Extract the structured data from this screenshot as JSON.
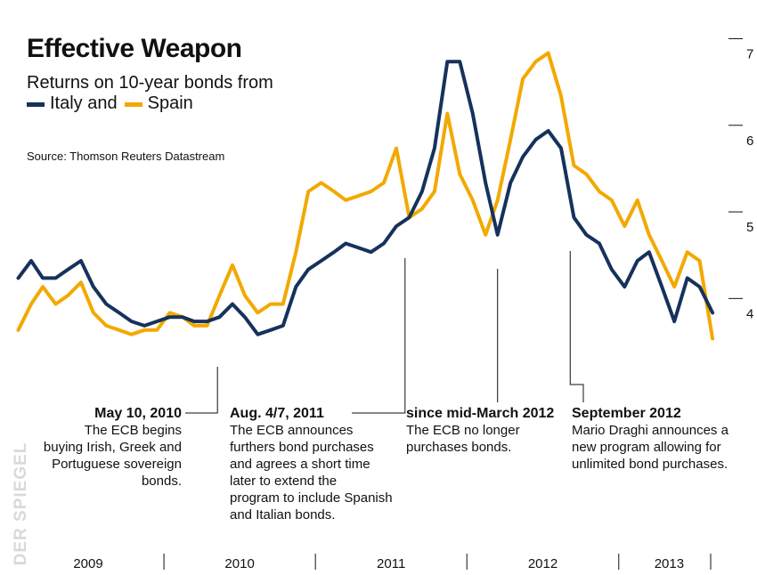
{
  "title": "Effective Weapon",
  "subtitle": "Returns on 10-year bonds from",
  "legend": {
    "italy_label": "Italy and",
    "spain_label": "Spain"
  },
  "source": "Source: Thomson Reuters Datastream",
  "watermark": "DER SPIEGEL",
  "colors": {
    "italy": "#16325c",
    "spain": "#f2a900",
    "annotation_line": "#111111"
  },
  "annotations": [
    {
      "id": "may2010",
      "date": "2010-05-10",
      "heading": "May 10, 2010",
      "lines": [
        "The ECB begins",
        "buying Irish, Greek and",
        "Portuguese sovereign",
        "bonds."
      ]
    },
    {
      "id": "aug2011",
      "date": "2011-08-05",
      "heading": "Aug. 4/7, 2011",
      "lines": [
        "The ECB announces",
        "furthers bond purchases",
        "and agrees a short time",
        "later to extend the",
        "program to include Spanish",
        "and Italian bonds."
      ]
    },
    {
      "id": "mar2012",
      "date": "2012-03-15",
      "heading": "since mid-March 2012",
      "lines": [
        "The ECB no longer",
        "purchases bonds."
      ]
    },
    {
      "id": "sep2012",
      "date": "2012-09-06",
      "heading": "September 2012",
      "lines": [
        "Mario Draghi announces a",
        "new program allowing for",
        "unlimited bond purchases."
      ]
    }
  ],
  "chart_data": {
    "type": "line",
    "title": "Effective Weapon",
    "subtitle": "Returns on 10-year bonds from Italy and Spain",
    "xlabel": "",
    "ylabel": "",
    "ylim": [
      3.5,
      7.2
    ],
    "xlim": [
      "2009-01-01",
      "2013-09-01"
    ],
    "y_ticks": [
      4,
      5,
      6,
      7
    ],
    "x_tick_labels": [
      "2009",
      "2010",
      "2011",
      "2012",
      "2013"
    ],
    "grid": false,
    "legend": "top-left",
    "series": [
      {
        "name": "Italy",
        "x": [
          "2009-01",
          "2009-02",
          "2009-03",
          "2009-04",
          "2009-05",
          "2009-06",
          "2009-07",
          "2009-08",
          "2009-09",
          "2009-10",
          "2009-11",
          "2009-12",
          "2010-01",
          "2010-02",
          "2010-03",
          "2010-04",
          "2010-05",
          "2010-06",
          "2010-07",
          "2010-08",
          "2010-09",
          "2010-10",
          "2010-11",
          "2010-12",
          "2011-01",
          "2011-02",
          "2011-03",
          "2011-04",
          "2011-05",
          "2011-06",
          "2011-07",
          "2011-08",
          "2011-09",
          "2011-10",
          "2011-11",
          "2011-12",
          "2012-01",
          "2012-02",
          "2012-03",
          "2012-04",
          "2012-05",
          "2012-06",
          "2012-07",
          "2012-08",
          "2012-09",
          "2012-10",
          "2012-11",
          "2012-12",
          "2013-01",
          "2013-02",
          "2013-03",
          "2013-04",
          "2013-05",
          "2013-06",
          "2013-07",
          "2013-08"
        ],
        "values": [
          4.4,
          4.6,
          4.4,
          4.4,
          4.5,
          4.6,
          4.3,
          4.1,
          4.0,
          3.9,
          3.85,
          3.9,
          3.95,
          3.95,
          3.9,
          3.9,
          3.95,
          4.1,
          3.95,
          3.75,
          3.8,
          3.85,
          4.3,
          4.5,
          4.6,
          4.7,
          4.8,
          4.75,
          4.7,
          4.8,
          5.0,
          5.1,
          5.4,
          5.9,
          6.9,
          6.9,
          6.3,
          5.5,
          4.9,
          5.5,
          5.8,
          6.0,
          6.1,
          5.9,
          5.1,
          4.9,
          4.8,
          4.5,
          4.3,
          4.6,
          4.7,
          4.3,
          3.9,
          4.4,
          4.3,
          4.0
        ]
      },
      {
        "name": "Spain",
        "x": [
          "2009-01",
          "2009-02",
          "2009-03",
          "2009-04",
          "2009-05",
          "2009-06",
          "2009-07",
          "2009-08",
          "2009-09",
          "2009-10",
          "2009-11",
          "2009-12",
          "2010-01",
          "2010-02",
          "2010-03",
          "2010-04",
          "2010-05",
          "2010-06",
          "2010-07",
          "2010-08",
          "2010-09",
          "2010-10",
          "2010-11",
          "2010-12",
          "2011-01",
          "2011-02",
          "2011-03",
          "2011-04",
          "2011-05",
          "2011-06",
          "2011-07",
          "2011-08",
          "2011-09",
          "2011-10",
          "2011-11",
          "2011-12",
          "2012-01",
          "2012-02",
          "2012-03",
          "2012-04",
          "2012-05",
          "2012-06",
          "2012-07",
          "2012-08",
          "2012-09",
          "2012-10",
          "2012-11",
          "2012-12",
          "2013-01",
          "2013-02",
          "2013-03",
          "2013-04",
          "2013-05",
          "2013-06",
          "2013-07",
          "2013-08"
        ],
        "values": [
          3.8,
          4.1,
          4.3,
          4.1,
          4.2,
          4.35,
          4.0,
          3.85,
          3.8,
          3.75,
          3.8,
          3.8,
          4.0,
          3.95,
          3.85,
          3.85,
          4.2,
          4.55,
          4.2,
          4.0,
          4.1,
          4.1,
          4.7,
          5.4,
          5.5,
          5.4,
          5.3,
          5.35,
          5.4,
          5.5,
          5.9,
          5.1,
          5.2,
          5.4,
          6.3,
          5.6,
          5.3,
          4.9,
          5.3,
          6.0,
          6.7,
          6.9,
          7.0,
          6.5,
          5.7,
          5.6,
          5.4,
          5.3,
          5.0,
          5.3,
          4.9,
          4.6,
          4.3,
          4.7,
          4.6,
          3.7
        ]
      }
    ]
  }
}
